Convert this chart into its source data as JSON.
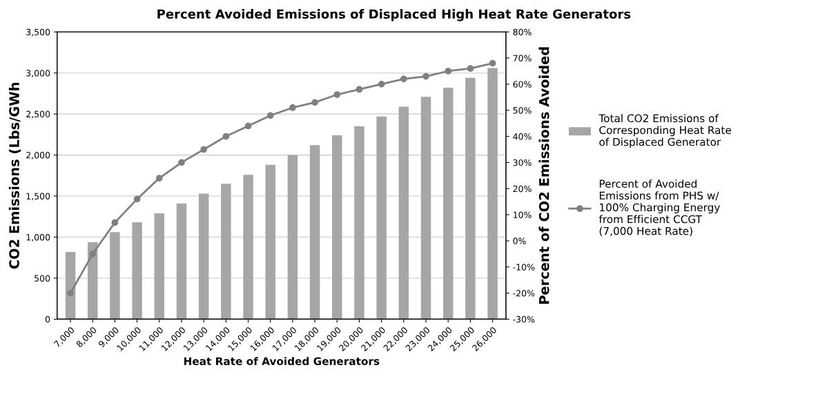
{
  "chart_data": {
    "type": "bar",
    "title": "Percent Avoided Emissions of Displaced High Heat Rate Generators",
    "xlabel": "Heat Rate of Avoided Generators",
    "ylabel": "CO2 Emissions (Lbs/GWh",
    "y2label": "Percent of CO2 Emissions Avoided",
    "categories": [
      "7,000",
      "8,000",
      "9,000",
      "10,000",
      "11,000",
      "12,000",
      "13,000",
      "14,000",
      "15,000",
      "16,000",
      "17,000",
      "18,000",
      "19,000",
      "20,000",
      "21,000",
      "22,000",
      "23,000",
      "24,000",
      "25,000",
      "26,000"
    ],
    "series": [
      {
        "name": "Total CO2 Emissions of Corresponding Heat Rate of Displaced Generator",
        "color": "#a6a6a6",
        "values": [
          820,
          940,
          1060,
          1180,
          1290,
          1410,
          1530,
          1650,
          1760,
          1880,
          2000,
          2120,
          2240,
          2350,
          2470,
          2590,
          2710,
          2820,
          2940,
          3060
        ]
      },
      {
        "name": "Percent of Avoided Emissions from PHS w/ 100% Charging Energy from Efficient CCGT (7,000 Heat Rate)",
        "type": "line",
        "axis": "y2",
        "color": "#808080",
        "marker": "circle",
        "values": [
          -20,
          -5,
          7,
          16,
          24,
          30,
          35,
          40,
          44,
          48,
          51,
          53,
          56,
          58,
          60,
          62,
          63,
          65,
          66,
          68
        ]
      }
    ],
    "ylim": [
      0,
      3500
    ],
    "yticks": [
      {
        "value": 0,
        "label": "0"
      },
      {
        "value": 500,
        "label": "500"
      },
      {
        "value": 1000,
        "label": "1,000"
      },
      {
        "value": 1500,
        "label": "1,500"
      },
      {
        "value": 2000,
        "label": "2,000"
      },
      {
        "value": 2500,
        "label": "2,500"
      },
      {
        "value": 3000,
        "label": "3,000"
      },
      {
        "value": 3500,
        "label": "3,500"
      }
    ],
    "y2lim": [
      -30,
      80
    ],
    "y2ticks": [
      {
        "value": -30,
        "label": "-30%"
      },
      {
        "value": -20,
        "label": "-20%"
      },
      {
        "value": -10,
        "label": "-10%"
      },
      {
        "value": 0,
        "label": "0%"
      },
      {
        "value": 10,
        "label": "10%"
      },
      {
        "value": 20,
        "label": "20%"
      },
      {
        "value": 30,
        "label": "30%"
      },
      {
        "value": 40,
        "label": "40%"
      },
      {
        "value": 50,
        "label": "50%"
      },
      {
        "value": 60,
        "label": "60%"
      },
      {
        "value": 70,
        "label": "70%"
      },
      {
        "value": 80,
        "label": "80%"
      }
    ],
    "grid": "y",
    "legend": "right"
  }
}
